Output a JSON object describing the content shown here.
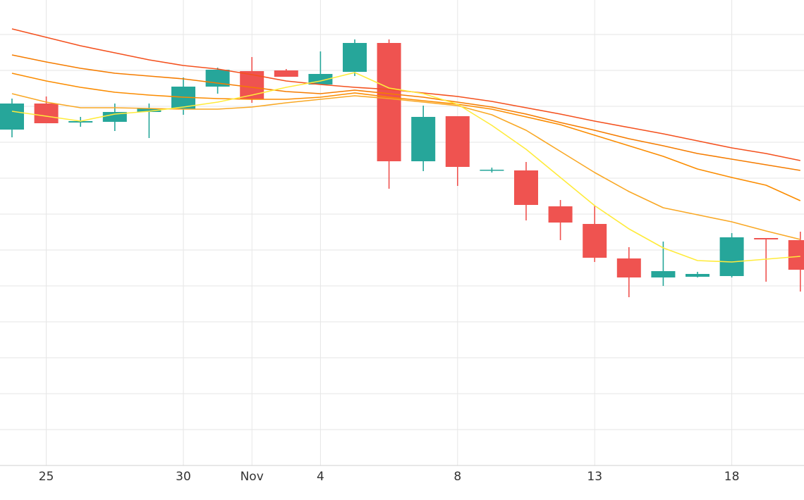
{
  "chart_data": {
    "type": "candlestick",
    "categories": [
      null,
      "25",
      null,
      null,
      null,
      "30",
      null,
      "Nov",
      null,
      "4",
      null,
      null,
      null,
      "8",
      null,
      null,
      null,
      "13",
      null,
      null,
      null,
      "18",
      null,
      null
    ],
    "open": [
      477,
      514,
      487,
      488,
      502,
      506,
      538,
      560,
      561,
      541,
      559,
      600,
      432,
      496,
      419,
      419,
      368,
      343,
      294,
      267,
      268,
      269,
      323,
      320
    ],
    "high": [
      521,
      524,
      495,
      514,
      514,
      551,
      565,
      580,
      563,
      588,
      605,
      605,
      511,
      496,
      423,
      431,
      377,
      369,
      310,
      318,
      275,
      330,
      323,
      332
    ],
    "low": [
      466,
      486,
      481,
      475,
      465,
      498,
      528,
      515,
      552,
      541,
      553,
      393,
      418,
      397,
      416,
      348,
      320,
      289,
      239,
      255,
      267,
      267,
      261,
      247
    ],
    "close": [
      514,
      486,
      489,
      502,
      507,
      538,
      562,
      520,
      552,
      556,
      600,
      432,
      495,
      424,
      420,
      370,
      345,
      295,
      267,
      276,
      272,
      324,
      321,
      278
    ],
    "up_color": "#26a69a",
    "down_color": "#ef5350",
    "lines": [
      {
        "color": "#f4511e",
        "values": [
          620,
          608,
          596,
          586,
          576,
          568,
          563,
          555,
          546,
          541,
          537,
          534,
          529,
          524,
          517,
          508,
          499,
          489,
          480,
          471,
          461,
          451,
          443,
          433
        ]
      },
      {
        "color": "#f57c00",
        "values": [
          583,
          573,
          564,
          557,
          553,
          549,
          543,
          537,
          531,
          528,
          533,
          528,
          523,
          516,
          509,
          499,
          487,
          476,
          464,
          454,
          443,
          435,
          427,
          419
        ]
      },
      {
        "color": "#fb8c00",
        "values": [
          557,
          546,
          537,
          530,
          526,
          523,
          521,
          520,
          520,
          523,
          529,
          523,
          518,
          513,
          506,
          495,
          484,
          469,
          454,
          439,
          421,
          409,
          398,
          376
        ]
      },
      {
        "color": "#f9a825",
        "values": [
          528,
          516,
          508,
          508,
          507,
          506,
          506,
          509,
          515,
          520,
          525,
          521,
          516,
          511,
          498,
          476,
          446,
          416,
          389,
          366,
          356,
          346,
          333,
          321
        ]
      },
      {
        "color": "#ffeb3b",
        "values": [
          503,
          496,
          489,
          499,
          503,
          509,
          516,
          526,
          537,
          546,
          558,
          536,
          528,
          513,
          483,
          449,
          409,
          369,
          336,
          309,
          291,
          289,
          293,
          297
        ]
      }
    ],
    "ylim": [
      0,
      661
    ],
    "yticks": [
      51,
      102,
      153,
      204,
      255,
      306,
      357,
      408,
      459,
      510,
      561,
      612
    ],
    "grid": true
  }
}
